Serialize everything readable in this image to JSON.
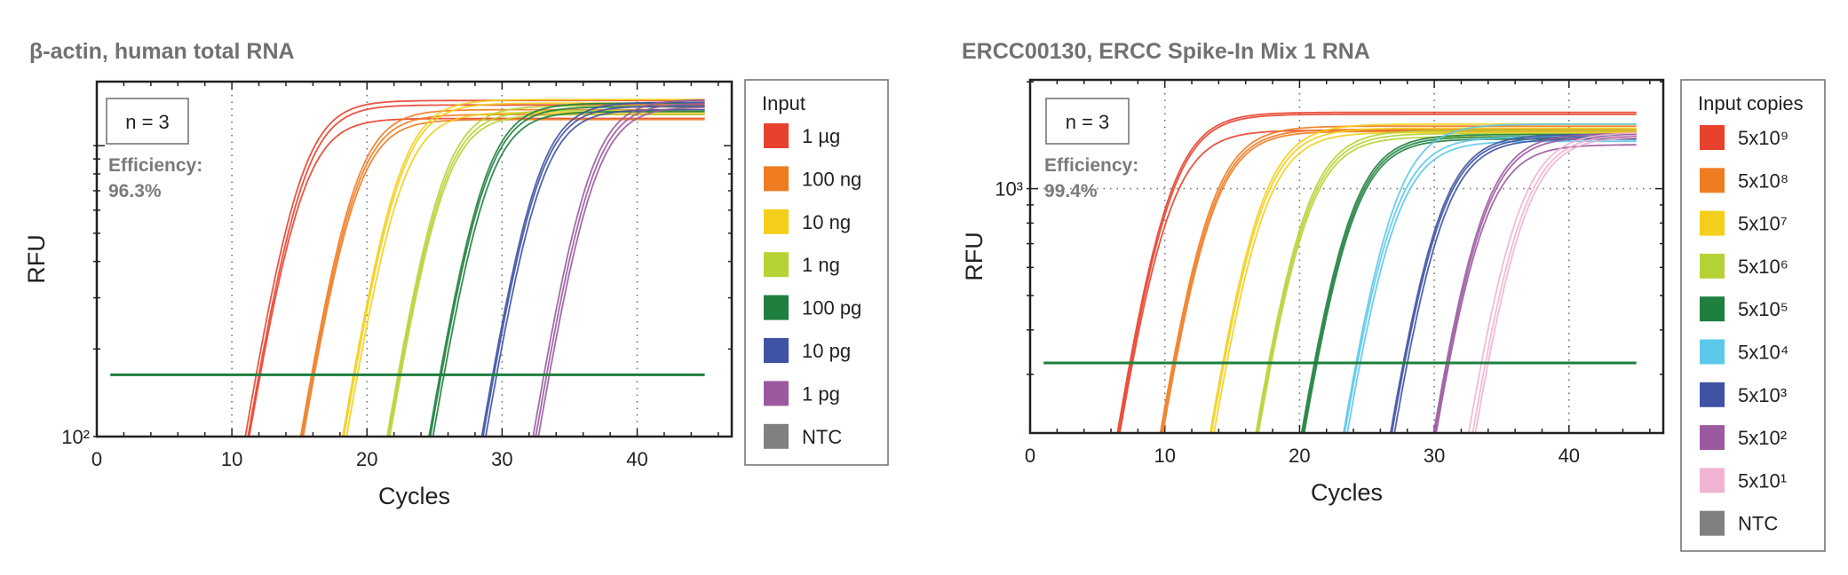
{
  "chart_data": [
    {
      "type": "line",
      "title": "β-actin, human total RNA",
      "xlabel": "Cycles",
      "ylabel": "RFU",
      "xlim": [
        0,
        47
      ],
      "ylim": [
        100,
        1660
      ],
      "y_scale": "log",
      "x_ticks": [
        0,
        10,
        20,
        30,
        40
      ],
      "x_tick_labels": [
        "0",
        "10",
        "20",
        "30",
        "40"
      ],
      "y_tick_labels": [
        {
          "value": 100,
          "label": "10²"
        }
      ],
      "grid": "dotted vertical at x ticks",
      "annotation_n": "n = 3",
      "efficiency_label": "Efficiency:",
      "efficiency_value": "96.3%",
      "threshold_rfu": 163,
      "threshold_color": "#1e7f3e",
      "legend": {
        "title": "Input",
        "position": "right",
        "items": [
          {
            "label": "1 µg",
            "color": "#e8412c"
          },
          {
            "label": "100 ng",
            "color": "#f07c22"
          },
          {
            "label": "10 ng",
            "color": "#f3cf1b"
          },
          {
            "label": "1 ng",
            "color": "#b5d334"
          },
          {
            "label": "100 pg",
            "color": "#1e7f3e"
          },
          {
            "label": "10 pg",
            "color": "#3f52a3"
          },
          {
            "label": "1 pg",
            "color": "#9b5aa0"
          },
          {
            "label": "NTC",
            "color": "#808080"
          }
        ]
      },
      "series": [
        {
          "name": "1 µg",
          "color": "#e8412c",
          "ct": [
            11.8,
            12.0,
            12.1
          ],
          "plateau_rfu": [
            1430,
            1380,
            1240
          ]
        },
        {
          "name": "100 ng",
          "color": "#f07c22",
          "ct": [
            15.9,
            16.0,
            16.1
          ],
          "plateau_rfu": [
            1330,
            1280,
            1230
          ]
        },
        {
          "name": "10 ng",
          "color": "#f3cf1b",
          "ct": [
            19.0,
            19.1,
            19.3
          ],
          "plateau_rfu": [
            1440,
            1400,
            1300
          ]
        },
        {
          "name": "1 ng",
          "color": "#b5d334",
          "ct": [
            22.3,
            22.4,
            22.5
          ],
          "plateau_rfu": [
            1370,
            1320,
            1280
          ]
        },
        {
          "name": "100 pg",
          "color": "#1e7f3e",
          "ct": [
            25.4,
            25.5,
            25.7
          ],
          "plateau_rfu": [
            1400,
            1360,
            1310
          ]
        },
        {
          "name": "10 pg",
          "color": "#3f52a3",
          "ct": [
            29.3,
            29.4,
            29.6
          ],
          "plateau_rfu": [
            1410,
            1370,
            1330
          ]
        },
        {
          "name": "1 pg",
          "color": "#9b5aa0",
          "ct": [
            33.1,
            33.3,
            33.5
          ],
          "plateau_rfu": [
            1440,
            1400,
            1360
          ]
        },
        {
          "name": "NTC",
          "color": "#808080",
          "ct": [],
          "plateau_rfu": []
        }
      ]
    },
    {
      "type": "line",
      "title": "ERCC00130, ERCC Spike-In Mix 1 RNA",
      "xlabel": "Cycles",
      "ylabel": "RFU",
      "xlim": [
        0,
        47
      ],
      "ylim": [
        205,
        2025
      ],
      "y_scale": "log",
      "x_ticks": [
        0,
        10,
        20,
        30,
        40
      ],
      "x_tick_labels": [
        "0",
        "10",
        "20",
        "30",
        "40"
      ],
      "y_tick_labels": [
        {
          "value": 1000,
          "label": "10³"
        }
      ],
      "grid": "dotted vertical at x ticks and horizontal at 10³",
      "annotation_n": "n = 3",
      "efficiency_label": "Efficiency:",
      "efficiency_value": "99.4%",
      "threshold_rfu": 323,
      "threshold_color": "#1e7f3e",
      "legend": {
        "title": "Input copies",
        "position": "right",
        "items": [
          {
            "label": "5x10⁹",
            "color": "#e8412c"
          },
          {
            "label": "5x10⁸",
            "color": "#f07c22"
          },
          {
            "label": "5x10⁷",
            "color": "#f3cf1b"
          },
          {
            "label": "5x10⁶",
            "color": "#b5d334"
          },
          {
            "label": "5x10⁵",
            "color": "#1e7f3e"
          },
          {
            "label": "5x10⁴",
            "color": "#5bc8ea"
          },
          {
            "label": "5x10³",
            "color": "#3f52a3"
          },
          {
            "label": "5x10²",
            "color": "#9b5aa0"
          },
          {
            "label": "5x10¹",
            "color": "#f2b3d2"
          },
          {
            "label": "NTC",
            "color": "#808080"
          }
        ]
      },
      "series": [
        {
          "name": "5x10⁹",
          "color": "#e8412c",
          "ct": [
            7.4,
            7.5,
            7.6
          ],
          "plateau_rfu": [
            1640,
            1620,
            1460
          ]
        },
        {
          "name": "5x10⁸",
          "color": "#f07c22",
          "ct": [
            10.6,
            10.7,
            10.8
          ],
          "plateau_rfu": [
            1500,
            1470,
            1450
          ]
        },
        {
          "name": "5x10⁷",
          "color": "#f3cf1b",
          "ct": [
            14.3,
            14.4,
            14.6
          ],
          "plateau_rfu": [
            1520,
            1480,
            1440
          ]
        },
        {
          "name": "5x10⁶",
          "color": "#b5d334",
          "ct": [
            17.7,
            17.8,
            17.9
          ],
          "plateau_rfu": [
            1460,
            1430,
            1400
          ]
        },
        {
          "name": "5x10⁵",
          "color": "#1e7f3e",
          "ct": [
            21.1,
            21.2,
            21.3
          ],
          "plateau_rfu": [
            1420,
            1400,
            1380
          ]
        },
        {
          "name": "5x10⁴",
          "color": "#5bc8ea",
          "ct": [
            24.2,
            24.3,
            24.5
          ],
          "plateau_rfu": [
            1520,
            1400,
            1360
          ]
        },
        {
          "name": "5x10³",
          "color": "#3f52a3",
          "ct": [
            27.7,
            27.8,
            28.0
          ],
          "plateau_rfu": [
            1420,
            1400,
            1380
          ]
        },
        {
          "name": "5x10²",
          "color": "#9b5aa0",
          "ct": [
            30.9,
            31.0,
            31.1
          ],
          "plateau_rfu": [
            1430,
            1400,
            1330
          ]
        },
        {
          "name": "5x10¹",
          "color": "#f2b3d2",
          "ct": [
            33.5,
            33.8,
            34.0
          ],
          "plateau_rfu": [
            1440,
            1420,
            1400
          ]
        },
        {
          "name": "NTC",
          "color": "#808080",
          "ct": [],
          "plateau_rfu": []
        }
      ]
    }
  ]
}
